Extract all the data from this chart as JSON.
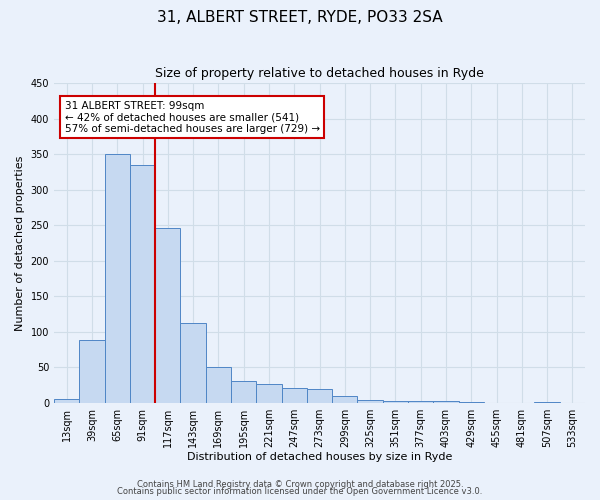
{
  "title1": "31, ALBERT STREET, RYDE, PO33 2SA",
  "title2": "Size of property relative to detached houses in Ryde",
  "xlabel": "Distribution of detached houses by size in Ryde",
  "ylabel": "Number of detached properties",
  "categories": [
    "13sqm",
    "39sqm",
    "65sqm",
    "91sqm",
    "117sqm",
    "143sqm",
    "169sqm",
    "195sqm",
    "221sqm",
    "247sqm",
    "273sqm",
    "299sqm",
    "325sqm",
    "351sqm",
    "377sqm",
    "403sqm",
    "429sqm",
    "455sqm",
    "481sqm",
    "507sqm",
    "533sqm"
  ],
  "bar_values": [
    5,
    88,
    350,
    335,
    246,
    112,
    50,
    31,
    26,
    21,
    20,
    9,
    4,
    2,
    2,
    2,
    1,
    0,
    0,
    1,
    0
  ],
  "bar_color": "#c6d9f1",
  "bar_edge_color": "#4f86c6",
  "red_line_x": 3.5,
  "red_line_color": "#cc0000",
  "annotation_line1": "31 ALBERT STREET: 99sqm",
  "annotation_line2": "← 42% of detached houses are smaller (541)",
  "annotation_line3": "57% of semi-detached houses are larger (729) →",
  "annotation_box_color": "#ffffff",
  "annotation_box_edge_color": "#cc0000",
  "ylim": [
    0,
    450
  ],
  "yticks": [
    0,
    50,
    100,
    150,
    200,
    250,
    300,
    350,
    400,
    450
  ],
  "bg_color": "#eaf1fb",
  "grid_color": "#d0dde8",
  "footer_line1": "Contains HM Land Registry data © Crown copyright and database right 2025.",
  "footer_line2": "Contains public sector information licensed under the Open Government Licence v3.0.",
  "title1_fontsize": 11,
  "title2_fontsize": 9,
  "axis_label_fontsize": 8,
  "tick_fontsize": 7,
  "annotation_fontsize": 7.5,
  "footer_fontsize": 6
}
